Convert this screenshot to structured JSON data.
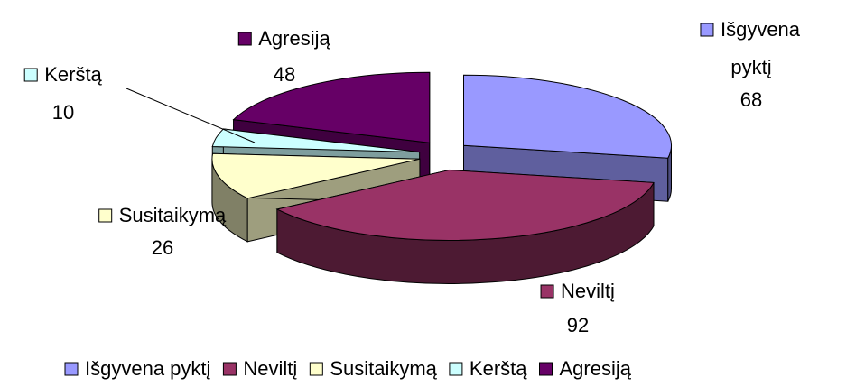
{
  "chart_data": {
    "type": "pie3d",
    "categories": [
      "Išgyvena pyktį",
      "Neviltį",
      "Susitaikymą",
      "Kerštą",
      "Agresiją"
    ],
    "values": [
      68,
      92,
      26,
      10,
      48
    ],
    "colors": [
      "#9999ff",
      "#993366",
      "#ffffcc",
      "#ccffff",
      "#660066"
    ],
    "legend": "bottom"
  }
}
